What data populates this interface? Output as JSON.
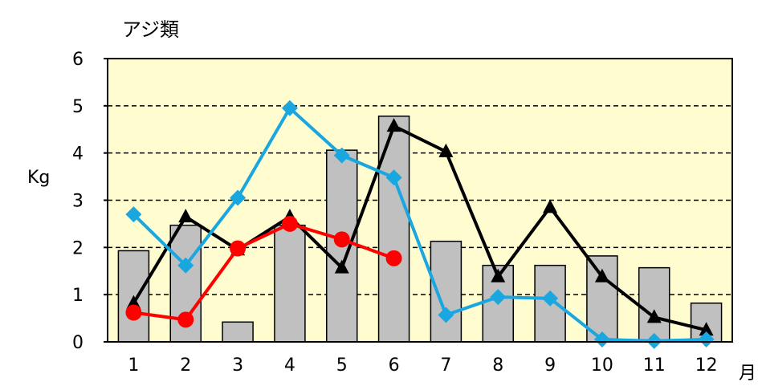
{
  "chart_data": {
    "type": "bar",
    "title": "アジ類",
    "ylabel": "Kg",
    "xlabel": "月",
    "ylim": [
      0,
      6
    ],
    "y_ticks": [
      "0",
      "1",
      "2",
      "3",
      "4",
      "5",
      "6"
    ],
    "categories": [
      "1",
      "2",
      "3",
      "4",
      "5",
      "6",
      "7",
      "8",
      "9",
      "10",
      "11",
      "12"
    ],
    "grid": true,
    "background": "#fffdd0",
    "series": [
      {
        "kind": "bar",
        "color": "#c0c0c0",
        "values": [
          1.93,
          2.47,
          0.42,
          2.47,
          4.06,
          4.78,
          2.13,
          1.62,
          1.62,
          1.82,
          1.57,
          0.82
        ]
      },
      {
        "kind": "line",
        "marker": "triangle",
        "color": "#000000",
        "values": [
          0.82,
          2.65,
          1.95,
          2.65,
          1.57,
          4.57,
          4.03,
          1.38,
          2.85,
          1.38,
          0.52,
          0.25
        ]
      },
      {
        "kind": "line",
        "marker": "diamond",
        "color": "#1aa7e0",
        "values": [
          2.7,
          1.62,
          3.05,
          4.95,
          3.95,
          3.48,
          0.57,
          0.95,
          0.92,
          0.05,
          0.02,
          0.05
        ]
      },
      {
        "kind": "line",
        "marker": "circle",
        "color": "#ff0000",
        "values": [
          0.62,
          0.47,
          1.98,
          2.5,
          2.17,
          1.77,
          null,
          null,
          null,
          null,
          null,
          null
        ]
      }
    ]
  }
}
